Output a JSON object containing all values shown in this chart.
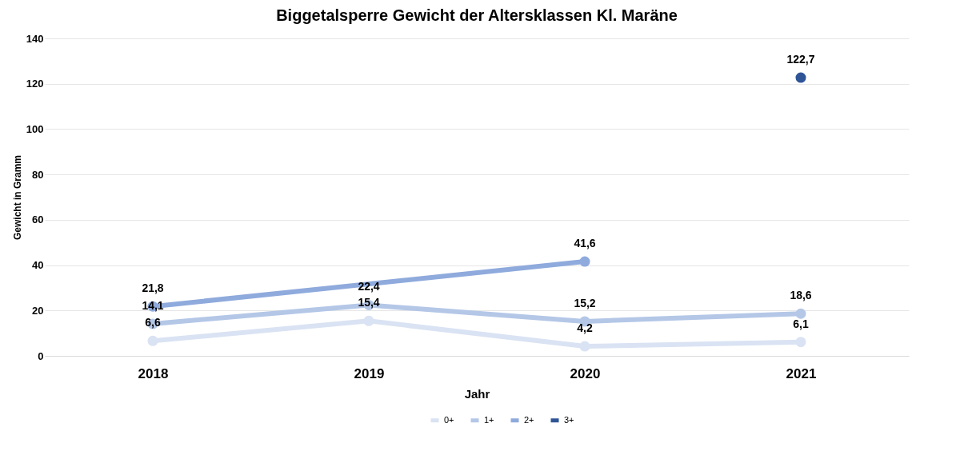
{
  "chart_data": {
    "type": "line",
    "title": "Biggetalsperre Gewicht der Altersklassen Kl. Maräne",
    "xlabel": "Jahr",
    "ylabel": "Gewicht in Gramm",
    "categories": [
      "2018",
      "2019",
      "2020",
      "2021"
    ],
    "series": [
      {
        "name": "0+",
        "color": "#dae3f3",
        "values": [
          6.6,
          15.4,
          4.2,
          6.1
        ],
        "value_labels": [
          "6,6",
          "15,4",
          "4,2",
          "6,1"
        ]
      },
      {
        "name": "1+",
        "color": "#b4c7e7",
        "values": [
          14.1,
          22.4,
          15.2,
          18.6
        ],
        "value_labels": [
          "14,1",
          "22,4",
          "15,2",
          "18,6"
        ]
      },
      {
        "name": "2+",
        "color": "#8faadc",
        "values": [
          21.8,
          null,
          41.6,
          null
        ],
        "value_labels": [
          "21,8",
          null,
          "41,6",
          null
        ]
      },
      {
        "name": "3+",
        "color": "#2f5597",
        "values": [
          null,
          null,
          null,
          122.7
        ],
        "value_labels": [
          null,
          null,
          null,
          "122,7"
        ]
      }
    ],
    "ylim": [
      0,
      140
    ],
    "yticks": [
      0,
      20,
      40,
      60,
      80,
      100,
      120,
      140
    ],
    "grid": "y",
    "legend": "bottom",
    "marker": "circle",
    "line_style": "solid"
  }
}
